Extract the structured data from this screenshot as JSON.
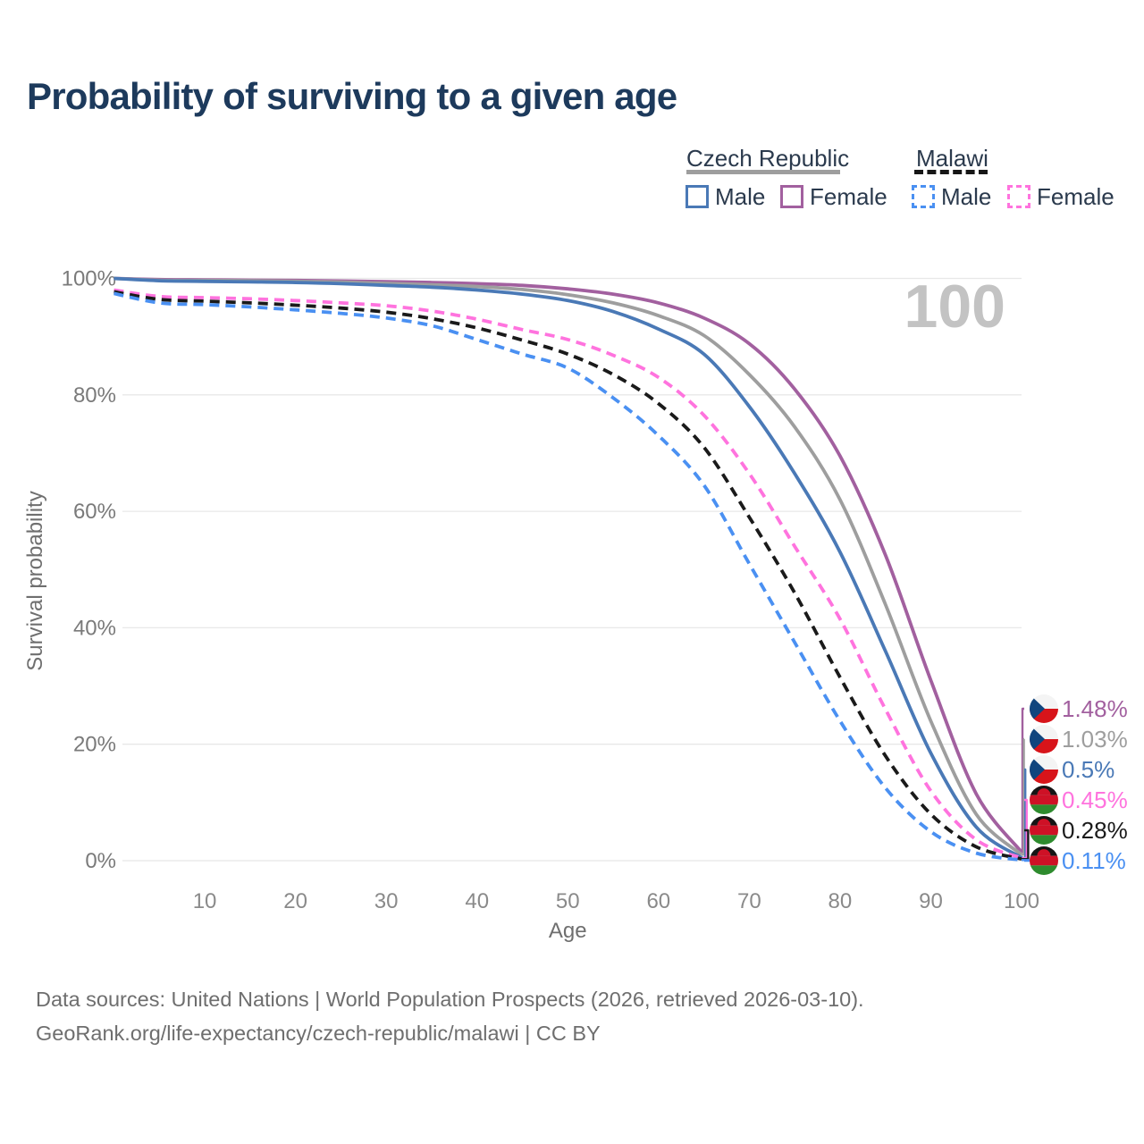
{
  "header": {
    "title": "Probability of surviving to a given age"
  },
  "legend": {
    "groups": [
      {
        "label": "Czech Republic",
        "line_style": "solid",
        "underline_color": "#9e9e9e",
        "items": [
          {
            "label": "Male",
            "color": "#4a79b6"
          },
          {
            "label": "Female",
            "color": "#a2609f"
          }
        ]
      },
      {
        "label": "Malawi",
        "line_style": "dashed",
        "underline_color": "#161616",
        "items": [
          {
            "label": "Male",
            "color": "#4a90f2"
          },
          {
            "label": "Female",
            "color": "#ff73de"
          }
        ]
      }
    ]
  },
  "watermark_age": "100",
  "chart_data": {
    "type": "line",
    "title": "Probability of surviving to a given age",
    "xlabel": "Age",
    "ylabel": "Survival probability",
    "xlim": [
      0,
      100
    ],
    "ylim": [
      0,
      100
    ],
    "grid": "horizontal",
    "legend_position": "top-right",
    "x_ticks": [
      10,
      20,
      30,
      40,
      50,
      60,
      70,
      80,
      90,
      100
    ],
    "y_tick_values": [
      0,
      20,
      40,
      60,
      80,
      100
    ],
    "y_tick_labels": [
      "0%",
      "20%",
      "40%",
      "60%",
      "80%",
      "100%"
    ],
    "x": [
      0,
      5,
      10,
      15,
      20,
      25,
      30,
      35,
      40,
      45,
      50,
      55,
      60,
      65,
      70,
      75,
      80,
      85,
      90,
      95,
      100
    ],
    "series": [
      {
        "id": "czech-republic-female",
        "country": "Czech Republic",
        "sex": "Female",
        "style": "solid",
        "color": "#a2609f",
        "flag": "czech-republic",
        "end_label": "1.48%",
        "values": [
          100,
          99.8,
          99.75,
          99.7,
          99.65,
          99.55,
          99.45,
          99.3,
          99.1,
          98.8,
          98.2,
          97.3,
          95.8,
          93.2,
          88.8,
          81.0,
          69.5,
          52.5,
          31.0,
          11.5,
          1.48
        ]
      },
      {
        "id": "czech-republic-both-sexes",
        "country": "Czech Republic",
        "sex": "Both sexes",
        "style": "solid",
        "color": "#9e9e9e",
        "flag": "czech-republic",
        "end_label": "1.03%",
        "values": [
          100,
          99.7,
          99.65,
          99.6,
          99.5,
          99.35,
          99.15,
          98.9,
          98.6,
          98.1,
          97.2,
          95.8,
          93.6,
          90.2,
          83.5,
          74.5,
          62.0,
          44.0,
          24.0,
          8.0,
          1.03
        ]
      },
      {
        "id": "czech-republic-male",
        "country": "Czech Republic",
        "sex": "Male",
        "style": "solid",
        "color": "#4a79b6",
        "flag": "czech-republic",
        "end_label": "0.5%",
        "values": [
          100,
          99.6,
          99.5,
          99.4,
          99.3,
          99.1,
          98.8,
          98.5,
          98.0,
          97.3,
          96.2,
          94.3,
          91.3,
          87.0,
          78.0,
          66.5,
          53.0,
          36.0,
          18.5,
          5.8,
          0.5
        ]
      },
      {
        "id": "malawi-female",
        "country": "Malawi",
        "sex": "Female",
        "style": "dashed",
        "color": "#ff73de",
        "flag": "malawi",
        "end_label": "0.45%",
        "values": [
          98.0,
          96.9,
          96.7,
          96.5,
          96.2,
          95.8,
          95.3,
          94.4,
          93.0,
          91.2,
          89.5,
          86.8,
          83.0,
          76.5,
          66.5,
          54.0,
          41.5,
          26.0,
          12.0,
          3.6,
          0.45
        ]
      },
      {
        "id": "malawi-both-sexes",
        "country": "Malawi",
        "sex": "Both sexes",
        "style": "dashed",
        "color": "#1a1a1a",
        "flag": "malawi",
        "end_label": "0.28%",
        "values": [
          97.7,
          96.4,
          96.1,
          95.8,
          95.4,
          94.9,
          94.2,
          93.1,
          91.5,
          89.4,
          87.0,
          83.5,
          78.5,
          71.0,
          59.0,
          46.0,
          31.5,
          18.0,
          8.0,
          2.4,
          0.28
        ]
      },
      {
        "id": "malawi-male",
        "country": "Malawi",
        "sex": "Male",
        "style": "dashed",
        "color": "#4a90f2",
        "flag": "malawi",
        "end_label": "0.11%",
        "values": [
          97.4,
          95.8,
          95.5,
          95.1,
          94.6,
          94.0,
          93.2,
          91.9,
          89.5,
          87.0,
          84.6,
          79.5,
          73.0,
          64.5,
          51.0,
          37.5,
          24.0,
          12.5,
          5.0,
          1.3,
          0.11
        ]
      }
    ]
  },
  "footer": {
    "line1": "Data sources: United Nations | World Population Prospects (2026, retrieved 2026-03-10).",
    "line2": "GeoRank.org/life-expectancy/czech-republic/malawi | CC BY"
  }
}
